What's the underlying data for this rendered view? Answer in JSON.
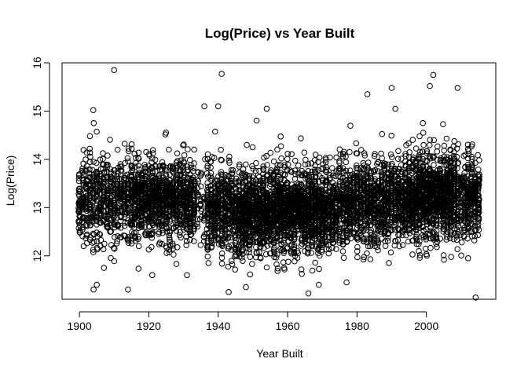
{
  "chart_data": {
    "type": "scatter",
    "title": "Log(Price) vs Year Built",
    "xlabel": "Year Built",
    "ylabel": "Log(Price)",
    "xlim": [
      1895,
      2020
    ],
    "ylim": [
      11.1,
      16.0
    ],
    "x_ticks": [
      "1900",
      "1920",
      "1940",
      "1960",
      "1980",
      "2000"
    ],
    "y_ticks": [
      "12",
      "13",
      "14",
      "15",
      "16"
    ],
    "grid": false,
    "legend": "none",
    "marker": "open-circle",
    "marker_color": "#000000",
    "x_range_data": [
      1900,
      2015
    ],
    "typical_y_band": [
      12.3,
      13.9
    ],
    "outliers": [
      {
        "x": 1910,
        "y": 15.85
      },
      {
        "x": 1941,
        "y": 15.77
      },
      {
        "x": 2002,
        "y": 15.75
      },
      {
        "x": 1990,
        "y": 15.48
      },
      {
        "x": 2009,
        "y": 15.48
      },
      {
        "x": 2001,
        "y": 15.52
      },
      {
        "x": 1936,
        "y": 15.1
      },
      {
        "x": 1940,
        "y": 15.1
      },
      {
        "x": 1904,
        "y": 15.02
      },
      {
        "x": 1954,
        "y": 15.05
      },
      {
        "x": 1983,
        "y": 15.35
      },
      {
        "x": 1905,
        "y": 11.4
      },
      {
        "x": 1914,
        "y": 11.3
      },
      {
        "x": 1943,
        "y": 11.25
      },
      {
        "x": 1948,
        "y": 11.35
      },
      {
        "x": 1966,
        "y": 11.22
      },
      {
        "x": 1969,
        "y": 11.4
      },
      {
        "x": 1977,
        "y": 11.45
      },
      {
        "x": 1931,
        "y": 11.6
      },
      {
        "x": 1921,
        "y": 11.6
      },
      {
        "x": 2012,
        "y": 11.95
      }
    ]
  }
}
